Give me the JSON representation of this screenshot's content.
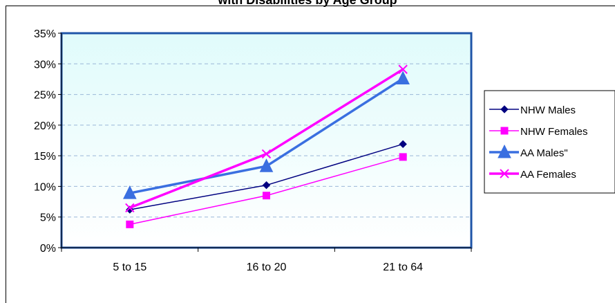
{
  "chart_data": {
    "type": "line",
    "title": "with Disabilities by Age Group",
    "categories": [
      "5 to 15",
      "16 to 20",
      "21 to 64"
    ],
    "ylim": [
      0,
      35
    ],
    "y_ticks": [
      "0%",
      "5%",
      "10%",
      "15%",
      "20%",
      "25%",
      "30%",
      "35%"
    ],
    "grid": true,
    "legend_position": "right",
    "series": [
      {
        "name": "NHW Males",
        "values": [
          6.2,
          10.2,
          16.9
        ],
        "color": "#000080",
        "marker": "diamond"
      },
      {
        "name": "NHW Females",
        "values": [
          3.8,
          8.5,
          14.8
        ],
        "color": "#ff00ff",
        "marker": "square"
      },
      {
        "name": "AA Males\"",
        "values": [
          8.9,
          13.3,
          27.6
        ],
        "color": "#3a6fe0",
        "marker": "triangle"
      },
      {
        "name": "AA Females",
        "values": [
          6.5,
          15.3,
          29.1
        ],
        "color": "#ff00ff",
        "marker": "x"
      }
    ],
    "colors": {
      "plot_background_top": "#e0fbfb",
      "plot_background_bottom": "#ffffff",
      "plot_border": "#1f55a8",
      "gridline": "#9ab7d8"
    }
  }
}
